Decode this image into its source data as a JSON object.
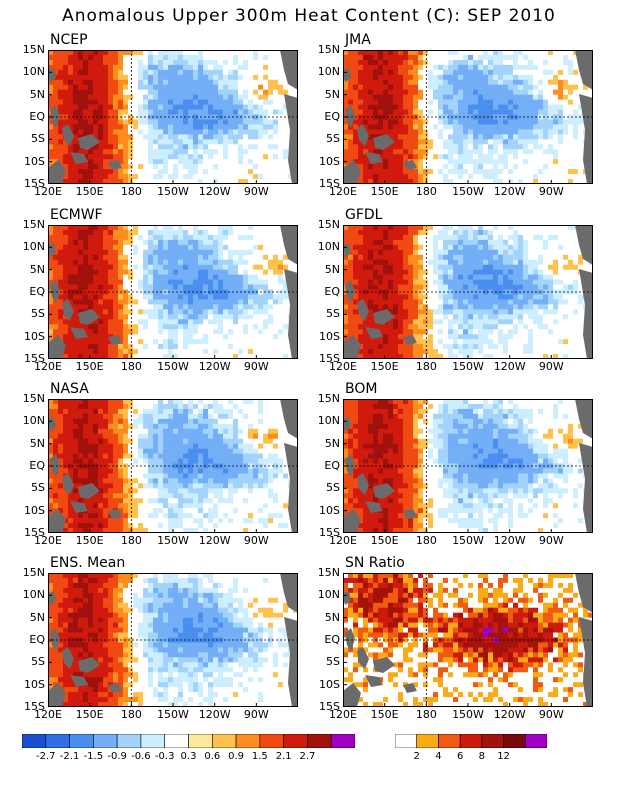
{
  "title": "Anomalous Upper 300m Heat Content (C): SEP 2010",
  "panels": [
    {
      "label": "NCEP"
    },
    {
      "label": "JMA"
    },
    {
      "label": "ECMWF"
    },
    {
      "label": "GFDL"
    },
    {
      "label": "NASA"
    },
    {
      "label": "BOM"
    },
    {
      "label": "ENS. Mean"
    },
    {
      "label": "SN Ratio"
    }
  ],
  "lat_labels": [
    "15N",
    "10N",
    "5N",
    "EQ",
    "5S",
    "10S",
    "15S"
  ],
  "lon_labels": [
    "120E",
    "150E",
    "180",
    "150W",
    "120W",
    "90W"
  ],
  "anomaly_colorbar": {
    "colors": [
      "#1a4fd1",
      "#2f6ee6",
      "#4a8ff0",
      "#73aef6",
      "#a3d3fb",
      "#cdeefe",
      "#ffffff",
      "#fde99a",
      "#fdc14c",
      "#fb8c1e",
      "#f04a12",
      "#d01a0e",
      "#a0100c",
      "#9f00c5"
    ],
    "ticks": [
      "-2.7",
      "-2.1",
      "-1.5",
      "-0.9",
      "-0.6",
      "-0.3",
      "0.3",
      "0.6",
      "0.9",
      "1.5",
      "2.1",
      "2.7"
    ]
  },
  "sn_colorbar": {
    "colors": [
      "#ffffff",
      "#fbaa17",
      "#f05b12",
      "#cc1a0d",
      "#a3120c",
      "#7a0a0a",
      "#a000c8"
    ],
    "ticks": [
      "2",
      "4",
      "6",
      "8",
      "12"
    ]
  }
}
